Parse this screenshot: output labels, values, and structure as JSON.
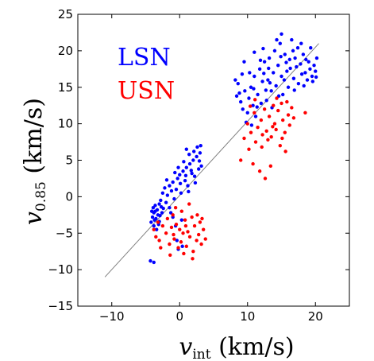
{
  "chart_data": {
    "type": "scatter",
    "xlabel": {
      "var": "v",
      "sub": "int",
      "unit": " (km/s)"
    },
    "ylabel": {
      "var": "v",
      "sub": "0.85",
      "unit": " (km/s)"
    },
    "xlim": [
      -15,
      25
    ],
    "ylim": [
      -15,
      25
    ],
    "xticks": [
      -10,
      0,
      10,
      20
    ],
    "yticks": [
      -15,
      -10,
      -5,
      0,
      5,
      10,
      15,
      20,
      25
    ],
    "xtick_labels": [
      "−10",
      "0",
      "10",
      "20"
    ],
    "ytick_labels": [
      "−15",
      "−10",
      "−5",
      "0",
      "5",
      "10",
      "15",
      "20",
      "25"
    ],
    "grid": false,
    "legend_position": "top-left",
    "reference_line": {
      "x": [
        -11,
        20.5
      ],
      "y": [
        -11,
        21
      ],
      "color": "#808080"
    },
    "series": [
      {
        "name": "LSN",
        "color": "#0000ff",
        "points": [
          [
            -4.2,
            -3.5
          ],
          [
            -4.0,
            -2.8
          ],
          [
            -3.8,
            -4.0
          ],
          [
            -3.6,
            -2.0
          ],
          [
            -3.9,
            -1.5
          ],
          [
            -3.5,
            -3.0
          ],
          [
            -3.2,
            -2.5
          ],
          [
            -3.0,
            -1.0
          ],
          [
            -3.4,
            -4.5
          ],
          [
            -2.8,
            -0.5
          ],
          [
            -3.7,
            -3.2
          ],
          [
            -3.3,
            -1.8
          ],
          [
            -2.6,
            -2.2
          ],
          [
            -3.1,
            -3.8
          ],
          [
            -2.9,
            -2.6
          ],
          [
            -3.6,
            -1.2
          ],
          [
            -3.8,
            -2.2
          ],
          [
            -2.7,
            -1.4
          ],
          [
            -3.0,
            -3.4
          ],
          [
            -4.1,
            -2.0
          ],
          [
            -2.5,
            0.5
          ],
          [
            -2.2,
            1.2
          ],
          [
            -2.0,
            -0.8
          ],
          [
            -1.8,
            0.2
          ],
          [
            -1.5,
            1.5
          ],
          [
            -1.2,
            0.8
          ],
          [
            -1.0,
            2.0
          ],
          [
            -0.8,
            -0.3
          ],
          [
            -0.5,
            1.0
          ],
          [
            -0.3,
            2.5
          ],
          [
            0.0,
            3.0
          ],
          [
            0.2,
            0.5
          ],
          [
            0.5,
            3.5
          ],
          [
            0.8,
            2.2
          ],
          [
            1.0,
            4.0
          ],
          [
            1.2,
            1.5
          ],
          [
            1.5,
            4.5
          ],
          [
            1.8,
            3.2
          ],
          [
            2.0,
            5.0
          ],
          [
            2.2,
            2.8
          ],
          [
            2.5,
            5.5
          ],
          [
            2.8,
            3.8
          ],
          [
            3.0,
            6.0
          ],
          [
            3.2,
            4.2
          ],
          [
            1.0,
            6.5
          ],
          [
            1.4,
            5.8
          ],
          [
            2.6,
            6.8
          ],
          [
            3.1,
            7.0
          ],
          [
            -0.2,
            4.0
          ],
          [
            0.6,
            4.8
          ],
          [
            -1.5,
            -1.5
          ],
          [
            -1.0,
            -2.8
          ],
          [
            -0.6,
            -4.0
          ],
          [
            0.3,
            -3.2
          ],
          [
            -1.3,
            -2.2
          ],
          [
            -0.4,
            -6.0
          ],
          [
            0.4,
            -6.8
          ],
          [
            -0.2,
            -7.2
          ],
          [
            -4.3,
            -8.8
          ],
          [
            -3.8,
            -9.0
          ],
          [
            0.9,
            2.9
          ],
          [
            1.7,
            3.6
          ],
          [
            2.3,
            1.9
          ],
          [
            2.9,
            4.9
          ],
          [
            -2.4,
            -1.6
          ],
          [
            -1.9,
            2.3
          ],
          [
            0.1,
            1.8
          ],
          [
            1.3,
            0.7
          ],
          [
            -0.7,
            3.3
          ],
          [
            2.1,
            6.2
          ],
          [
            8.2,
            16.0
          ],
          [
            8.6,
            15.5
          ],
          [
            9.0,
            13.0
          ],
          [
            9.3,
            12.0
          ],
          [
            9.6,
            14.5
          ],
          [
            10.0,
            11.5
          ],
          [
            10.2,
            13.5
          ],
          [
            10.5,
            15.0
          ],
          [
            10.8,
            12.5
          ],
          [
            11.0,
            16.5
          ],
          [
            11.2,
            11.0
          ],
          [
            11.5,
            14.0
          ],
          [
            11.8,
            17.5
          ],
          [
            12.0,
            12.8
          ],
          [
            12.2,
            15.8
          ],
          [
            12.5,
            18.5
          ],
          [
            12.8,
            13.2
          ],
          [
            13.0,
            16.0
          ],
          [
            13.2,
            19.0
          ],
          [
            13.5,
            14.5
          ],
          [
            13.8,
            17.0
          ],
          [
            14.0,
            20.0
          ],
          [
            14.2,
            15.2
          ],
          [
            14.5,
            18.0
          ],
          [
            14.8,
            21.0
          ],
          [
            15.0,
            16.5
          ],
          [
            15.2,
            14.0
          ],
          [
            15.5,
            19.5
          ],
          [
            15.8,
            17.2
          ],
          [
            16.0,
            15.0
          ],
          [
            16.2,
            18.8
          ],
          [
            16.5,
            21.5
          ],
          [
            16.8,
            16.2
          ],
          [
            17.0,
            19.0
          ],
          [
            17.2,
            17.8
          ],
          [
            17.5,
            15.5
          ],
          [
            17.8,
            18.2
          ],
          [
            18.0,
            16.8
          ],
          [
            18.2,
            19.5
          ],
          [
            18.5,
            17.0
          ],
          [
            18.8,
            16.0
          ],
          [
            19.0,
            18.5
          ],
          [
            19.2,
            17.5
          ],
          [
            19.5,
            16.5
          ],
          [
            19.8,
            18.0
          ],
          [
            20.0,
            17.2
          ],
          [
            20.2,
            19.0
          ],
          [
            15.0,
            22.3
          ],
          [
            14.3,
            21.5
          ],
          [
            12.3,
            20.3
          ],
          [
            11.0,
            19.8
          ],
          [
            9.5,
            18.5
          ],
          [
            10.3,
            17.0
          ],
          [
            8.8,
            14.2
          ],
          [
            9.8,
            10.2
          ],
          [
            10.6,
            9.8
          ],
          [
            11.4,
            12.3
          ],
          [
            12.7,
            14.6
          ],
          [
            13.6,
            12.2
          ],
          [
            14.6,
            13.8
          ],
          [
            15.4,
            16.0
          ],
          [
            16.3,
            17.6
          ],
          [
            17.4,
            20.4
          ],
          [
            18.6,
            18.8
          ],
          [
            19.6,
            15.8
          ],
          [
            13.1,
            17.6
          ],
          [
            11.9,
            18.7
          ],
          [
            10.9,
            14.8
          ],
          [
            12.4,
            16.9
          ],
          [
            14.9,
            19.2
          ],
          [
            16.7,
            20.0
          ],
          [
            17.9,
            21.0
          ],
          [
            19.3,
            20.4
          ],
          [
            20.1,
            16.4
          ],
          [
            9.2,
            16.8
          ],
          [
            8.4,
            13.8
          ],
          [
            13.3,
            15.6
          ],
          [
            15.7,
            18.4
          ],
          [
            16.9,
            14.6
          ],
          [
            18.3,
            15.2
          ]
        ]
      },
      {
        "name": "USN",
        "color": "#ff0000",
        "points": [
          [
            -3.8,
            -4.5
          ],
          [
            -3.5,
            -5.5
          ],
          [
            -3.2,
            -3.5
          ],
          [
            -3.0,
            -6.0
          ],
          [
            -2.5,
            -4.0
          ],
          [
            -2.0,
            -5.0
          ],
          [
            -1.8,
            -3.0
          ],
          [
            -1.5,
            -6.5
          ],
          [
            -1.2,
            -4.2
          ],
          [
            -1.0,
            -2.5
          ],
          [
            -0.8,
            -5.8
          ],
          [
            -0.5,
            -3.8
          ],
          [
            -0.2,
            -7.0
          ],
          [
            0.0,
            -4.5
          ],
          [
            0.2,
            -6.2
          ],
          [
            0.5,
            -5.0
          ],
          [
            0.8,
            -3.2
          ],
          [
            1.0,
            -6.8
          ],
          [
            1.2,
            -4.8
          ],
          [
            1.5,
            -5.5
          ],
          [
            1.8,
            -2.8
          ],
          [
            2.0,
            -7.5
          ],
          [
            2.2,
            -4.0
          ],
          [
            2.5,
            -6.0
          ],
          [
            2.8,
            -5.2
          ],
          [
            3.0,
            -3.5
          ],
          [
            3.2,
            -6.5
          ],
          [
            3.5,
            -4.5
          ],
          [
            3.8,
            -5.8
          ],
          [
            -0.6,
            -1.5
          ],
          [
            0.3,
            -2.0
          ],
          [
            1.4,
            -1.0
          ],
          [
            2.6,
            -2.5
          ],
          [
            -1.4,
            -8.0
          ],
          [
            0.6,
            -7.8
          ],
          [
            1.9,
            -8.5
          ],
          [
            -2.8,
            -7.0
          ],
          [
            3.3,
            -3.0
          ],
          [
            -0.9,
            -5.2
          ],
          [
            0.9,
            -4.0
          ],
          [
            9.5,
            8.0
          ],
          [
            10.0,
            10.0
          ],
          [
            10.2,
            6.5
          ],
          [
            10.5,
            8.8
          ],
          [
            10.8,
            4.5
          ],
          [
            11.0,
            11.5
          ],
          [
            11.2,
            7.5
          ],
          [
            11.5,
            9.5
          ],
          [
            11.8,
            3.5
          ],
          [
            12.0,
            10.5
          ],
          [
            12.2,
            8.5
          ],
          [
            12.5,
            12.0
          ],
          [
            12.8,
            9.0
          ],
          [
            13.0,
            7.8
          ],
          [
            13.2,
            11.0
          ],
          [
            13.5,
            8.2
          ],
          [
            13.8,
            12.5
          ],
          [
            14.0,
            10.0
          ],
          [
            14.2,
            9.2
          ],
          [
            14.5,
            11.8
          ],
          [
            14.8,
            7.0
          ],
          [
            15.0,
            12.8
          ],
          [
            15.2,
            10.5
          ],
          [
            15.5,
            8.8
          ],
          [
            15.8,
            13.0
          ],
          [
            16.0,
            11.2
          ],
          [
            16.2,
            9.8
          ],
          [
            16.5,
            12.2
          ],
          [
            18.5,
            11.5
          ],
          [
            9.0,
            5.0
          ],
          [
            12.6,
            2.5
          ],
          [
            13.4,
            4.2
          ],
          [
            11.1,
            13.3
          ],
          [
            15.6,
            6.2
          ],
          [
            16.8,
            10.8
          ],
          [
            14.3,
            13.5
          ],
          [
            12.1,
            6.8
          ],
          [
            13.7,
            9.6
          ],
          [
            10.4,
            12.4
          ],
          [
            15.1,
            8.0
          ]
        ]
      }
    ]
  }
}
